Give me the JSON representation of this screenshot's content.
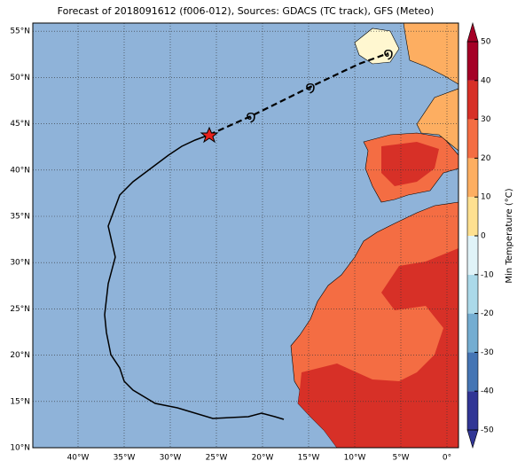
{
  "title": "Forecast of 2018091612 (f006-012), Sources: GDACS (TC track), GFS (Meteo)",
  "lat_labels": [
    "10°N",
    "15°N",
    "20°N",
    "25°N",
    "30°N",
    "35°N",
    "40°N",
    "45°N",
    "50°N",
    "55°N"
  ],
  "lon_labels": [
    "40°W",
    "35°W",
    "30°W",
    "25°W",
    "20°W",
    "15°W",
    "10°W",
    "5°W",
    "0°"
  ],
  "colorbar": {
    "label": "Min Temperature (°C)",
    "ticks": [
      -50,
      -40,
      -30,
      -20,
      -10,
      0,
      10,
      20,
      30,
      40,
      50
    ],
    "colors": [
      "#313695",
      "#4575b4",
      "#74add1",
      "#abd9e9",
      "#e0f3f8",
      "#fee090",
      "#fdae61",
      "#f46d43",
      "#d73027",
      "#a50026"
    ]
  }
}
